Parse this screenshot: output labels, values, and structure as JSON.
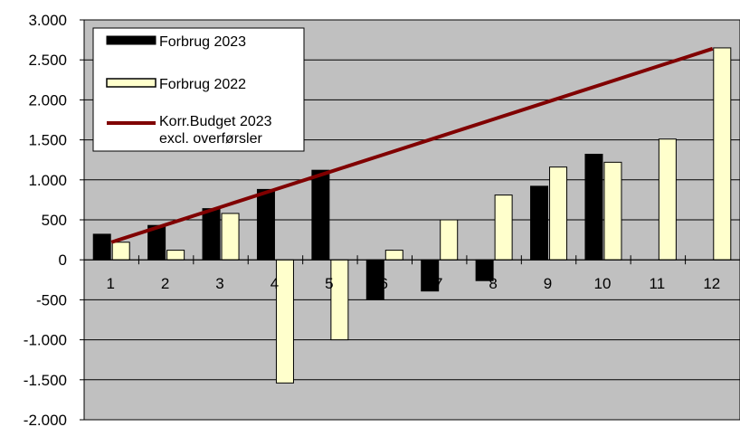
{
  "chart_data": {
    "type": "bar",
    "categories": [
      "1",
      "2",
      "3",
      "4",
      "5",
      "6",
      "7",
      "8",
      "9",
      "10",
      "11",
      "12"
    ],
    "series": [
      {
        "name": "Forbrug 2023",
        "type": "bar",
        "color": "#000000",
        "values": [
          320,
          430,
          640,
          880,
          1120,
          -500,
          -390,
          -260,
          920,
          1320,
          null,
          null
        ]
      },
      {
        "name": "Forbrug 2022",
        "type": "bar",
        "color": "#ffffcc",
        "values": [
          220,
          120,
          580,
          -1540,
          -1000,
          120,
          500,
          810,
          1160,
          1220,
          1510,
          2650
        ]
      },
      {
        "name_lines": [
          "Korr.Budget 2023",
          "excl. overførsler"
        ],
        "type": "line",
        "color": "#800000",
        "values": [
          220,
          440,
          660,
          880,
          1100,
          1320,
          1540,
          1760,
          1980,
          2200,
          2420,
          2640
        ]
      }
    ],
    "xlabel": "",
    "ylabel": "",
    "ylim": [
      -2000,
      3000
    ],
    "y_ticks": [
      3000,
      2500,
      2000,
      1500,
      1000,
      500,
      0,
      -500,
      -1000,
      -1500,
      -2000
    ],
    "y_tick_labels": [
      "3.000",
      "2.500",
      "2.000",
      "1.500",
      "1.000",
      "500",
      "0",
      "-500",
      "-1.000",
      "-1.500",
      "-2.000"
    ],
    "grid": true,
    "plot_background": "#c0c0c0",
    "legend_position": "top-left"
  }
}
